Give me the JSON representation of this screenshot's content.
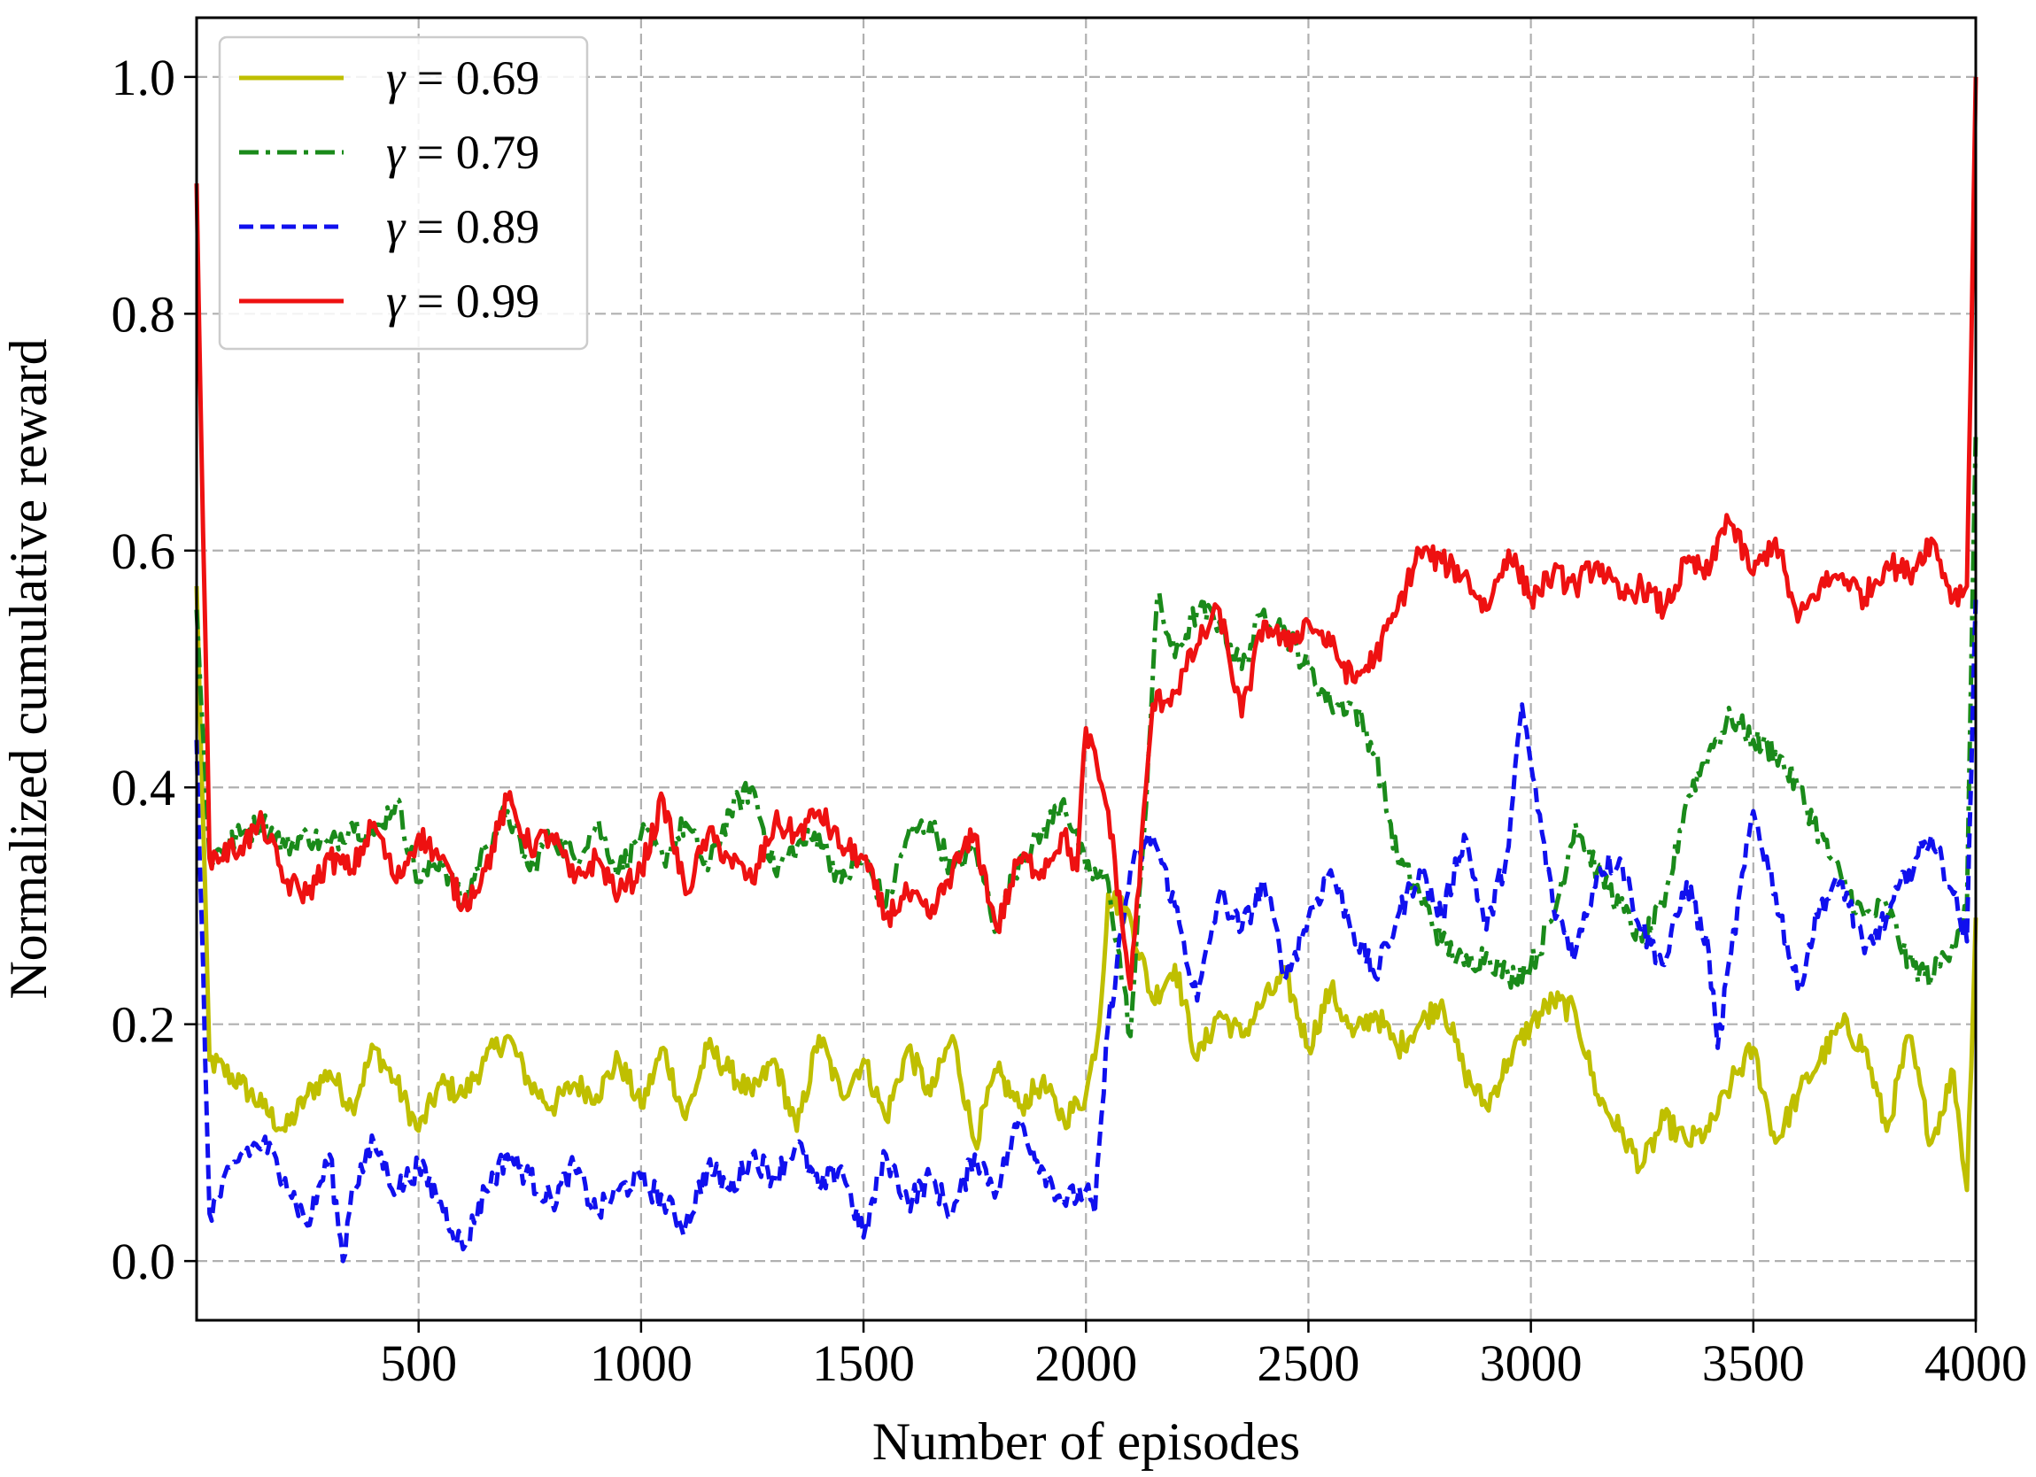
{
  "chart_data": {
    "type": "line",
    "title": "",
    "xlabel": "Number of episodes",
    "ylabel": "Normalized cumulative reward",
    "xlim": [
      1,
      4000
    ],
    "ylim": [
      -0.05,
      1.05
    ],
    "xticks": [
      500,
      1000,
      1500,
      2000,
      2500,
      3000,
      3500,
      4000
    ],
    "xtick_labels": [
      "500",
      "1000",
      "1500",
      "2000",
      "2500",
      "3000",
      "3500",
      "4000"
    ],
    "yticks": [
      0.0,
      0.2,
      0.4,
      0.6,
      0.8,
      1.0
    ],
    "ytick_labels": [
      "0.0",
      "0.2",
      "0.4",
      "0.6",
      "0.8",
      "1.0"
    ],
    "grid": true,
    "legend_position": "top-left",
    "series": [
      {
        "name": "γ = 0.69",
        "legend_symbol": "γ",
        "legend_value": " = 0.69",
        "color": "#bfbf00",
        "dash": "solid",
        "x": [
          1,
          30,
          100,
          150,
          200,
          250,
          300,
          350,
          400,
          450,
          500,
          550,
          600,
          650,
          700,
          750,
          800,
          850,
          900,
          950,
          1000,
          1050,
          1100,
          1150,
          1200,
          1250,
          1300,
          1350,
          1400,
          1450,
          1500,
          1550,
          1600,
          1650,
          1700,
          1750,
          1800,
          1850,
          1900,
          1950,
          2000,
          2030,
          2050,
          2100,
          2150,
          2200,
          2250,
          2300,
          2350,
          2400,
          2450,
          2500,
          2550,
          2600,
          2650,
          2700,
          2750,
          2800,
          2850,
          2900,
          2950,
          3000,
          3050,
          3100,
          3150,
          3200,
          3250,
          3300,
          3350,
          3400,
          3450,
          3500,
          3550,
          3600,
          3650,
          3700,
          3750,
          3800,
          3850,
          3900,
          3950,
          3980,
          4000
        ],
        "y": [
          0.57,
          0.17,
          0.15,
          0.13,
          0.11,
          0.14,
          0.16,
          0.13,
          0.18,
          0.15,
          0.11,
          0.15,
          0.14,
          0.17,
          0.19,
          0.15,
          0.13,
          0.15,
          0.14,
          0.17,
          0.13,
          0.18,
          0.12,
          0.18,
          0.16,
          0.14,
          0.17,
          0.11,
          0.19,
          0.14,
          0.17,
          0.12,
          0.18,
          0.14,
          0.19,
          0.1,
          0.16,
          0.13,
          0.15,
          0.12,
          0.14,
          0.2,
          0.31,
          0.29,
          0.22,
          0.25,
          0.17,
          0.21,
          0.19,
          0.22,
          0.24,
          0.18,
          0.23,
          0.19,
          0.21,
          0.18,
          0.2,
          0.22,
          0.16,
          0.13,
          0.17,
          0.2,
          0.22,
          0.21,
          0.14,
          0.11,
          0.08,
          0.12,
          0.1,
          0.11,
          0.15,
          0.18,
          0.1,
          0.14,
          0.17,
          0.2,
          0.18,
          0.11,
          0.19,
          0.1,
          0.16,
          0.06,
          0.29
        ]
      },
      {
        "name": "γ = 0.79",
        "legend_symbol": "γ",
        "legend_value": " = 0.79",
        "color": "#1a8a1a",
        "dash": "dashdot",
        "x": [
          1,
          30,
          100,
          150,
          200,
          250,
          300,
          350,
          400,
          450,
          500,
          550,
          600,
          650,
          700,
          750,
          800,
          850,
          900,
          950,
          1000,
          1050,
          1100,
          1150,
          1200,
          1250,
          1300,
          1350,
          1400,
          1450,
          1500,
          1550,
          1600,
          1650,
          1700,
          1750,
          1800,
          1850,
          1900,
          1950,
          2000,
          2050,
          2100,
          2130,
          2160,
          2200,
          2250,
          2300,
          2350,
          2400,
          2450,
          2500,
          2550,
          2600,
          2650,
          2700,
          2750,
          2800,
          2850,
          2900,
          2950,
          3000,
          3050,
          3100,
          3150,
          3200,
          3250,
          3300,
          3350,
          3400,
          3450,
          3500,
          3550,
          3600,
          3650,
          3700,
          3750,
          3800,
          3850,
          3900,
          3950,
          3980,
          4000
        ],
        "y": [
          0.55,
          0.34,
          0.36,
          0.37,
          0.35,
          0.36,
          0.35,
          0.37,
          0.36,
          0.39,
          0.32,
          0.34,
          0.3,
          0.35,
          0.38,
          0.33,
          0.36,
          0.34,
          0.37,
          0.33,
          0.36,
          0.34,
          0.37,
          0.33,
          0.38,
          0.4,
          0.33,
          0.35,
          0.36,
          0.32,
          0.34,
          0.3,
          0.36,
          0.37,
          0.33,
          0.35,
          0.28,
          0.34,
          0.36,
          0.39,
          0.33,
          0.32,
          0.19,
          0.36,
          0.56,
          0.51,
          0.55,
          0.54,
          0.5,
          0.55,
          0.53,
          0.5,
          0.47,
          0.47,
          0.43,
          0.34,
          0.31,
          0.27,
          0.25,
          0.26,
          0.24,
          0.25,
          0.29,
          0.37,
          0.33,
          0.3,
          0.27,
          0.3,
          0.39,
          0.43,
          0.46,
          0.44,
          0.43,
          0.4,
          0.36,
          0.32,
          0.29,
          0.3,
          0.25,
          0.24,
          0.27,
          0.3,
          0.7
        ]
      },
      {
        "name": "γ = 0.89",
        "legend_symbol": "γ",
        "legend_value": " = 0.89",
        "color": "#1010ee",
        "dash": "dashed",
        "x": [
          1,
          30,
          100,
          150,
          200,
          250,
          300,
          330,
          350,
          400,
          450,
          500,
          550,
          600,
          650,
          700,
          750,
          800,
          850,
          900,
          950,
          1000,
          1050,
          1100,
          1150,
          1200,
          1250,
          1300,
          1350,
          1400,
          1450,
          1500,
          1550,
          1600,
          1650,
          1700,
          1750,
          1800,
          1850,
          1900,
          1950,
          2000,
          2020,
          2050,
          2100,
          2150,
          2200,
          2250,
          2300,
          2350,
          2400,
          2450,
          2500,
          2550,
          2600,
          2650,
          2700,
          2750,
          2800,
          2850,
          2900,
          2950,
          2980,
          3000,
          3050,
          3100,
          3150,
          3200,
          3250,
          3300,
          3350,
          3400,
          3420,
          3450,
          3500,
          3550,
          3600,
          3650,
          3700,
          3750,
          3800,
          3850,
          3900,
          3950,
          3980,
          4000
        ],
        "y": [
          0.44,
          0.04,
          0.09,
          0.1,
          0.07,
          0.03,
          0.09,
          0.0,
          0.06,
          0.1,
          0.06,
          0.08,
          0.05,
          0.01,
          0.06,
          0.09,
          0.07,
          0.05,
          0.08,
          0.04,
          0.06,
          0.07,
          0.05,
          0.03,
          0.08,
          0.06,
          0.09,
          0.07,
          0.1,
          0.06,
          0.08,
          0.02,
          0.09,
          0.05,
          0.07,
          0.04,
          0.09,
          0.06,
          0.12,
          0.08,
          0.05,
          0.06,
          0.04,
          0.2,
          0.33,
          0.36,
          0.3,
          0.22,
          0.31,
          0.28,
          0.32,
          0.24,
          0.29,
          0.33,
          0.28,
          0.24,
          0.29,
          0.33,
          0.29,
          0.36,
          0.28,
          0.35,
          0.47,
          0.42,
          0.3,
          0.26,
          0.33,
          0.34,
          0.28,
          0.25,
          0.32,
          0.26,
          0.18,
          0.26,
          0.38,
          0.31,
          0.23,
          0.3,
          0.32,
          0.26,
          0.29,
          0.33,
          0.36,
          0.31,
          0.27,
          0.56
        ]
      },
      {
        "name": "γ = 0.99",
        "legend_symbol": "γ",
        "legend_value": " = 0.99",
        "color": "#ee1111",
        "dash": "solid",
        "x": [
          1,
          30,
          100,
          150,
          200,
          250,
          300,
          350,
          400,
          450,
          500,
          550,
          600,
          650,
          700,
          750,
          800,
          850,
          900,
          950,
          1000,
          1050,
          1100,
          1150,
          1200,
          1250,
          1300,
          1350,
          1400,
          1450,
          1500,
          1550,
          1600,
          1650,
          1700,
          1750,
          1800,
          1850,
          1900,
          1950,
          1980,
          2000,
          2050,
          2100,
          2150,
          2200,
          2250,
          2300,
          2350,
          2400,
          2450,
          2500,
          2550,
          2600,
          2650,
          2700,
          2750,
          2800,
          2850,
          2900,
          2950,
          3000,
          3050,
          3100,
          3150,
          3200,
          3250,
          3300,
          3350,
          3400,
          3440,
          3500,
          3550,
          3600,
          3650,
          3700,
          3750,
          3800,
          3850,
          3900,
          3950,
          3980,
          4000
        ],
        "y": [
          0.91,
          0.34,
          0.35,
          0.37,
          0.32,
          0.31,
          0.34,
          0.33,
          0.37,
          0.32,
          0.36,
          0.34,
          0.3,
          0.33,
          0.39,
          0.35,
          0.36,
          0.32,
          0.34,
          0.31,
          0.33,
          0.39,
          0.31,
          0.36,
          0.34,
          0.32,
          0.37,
          0.36,
          0.38,
          0.35,
          0.34,
          0.29,
          0.31,
          0.29,
          0.33,
          0.36,
          0.28,
          0.34,
          0.33,
          0.36,
          0.33,
          0.45,
          0.38,
          0.23,
          0.47,
          0.48,
          0.52,
          0.55,
          0.46,
          0.54,
          0.52,
          0.54,
          0.52,
          0.49,
          0.51,
          0.55,
          0.6,
          0.59,
          0.58,
          0.55,
          0.6,
          0.56,
          0.58,
          0.57,
          0.59,
          0.56,
          0.57,
          0.55,
          0.59,
          0.58,
          0.63,
          0.58,
          0.61,
          0.54,
          0.57,
          0.58,
          0.56,
          0.59,
          0.58,
          0.61,
          0.56,
          0.57,
          1.0
        ]
      }
    ]
  }
}
